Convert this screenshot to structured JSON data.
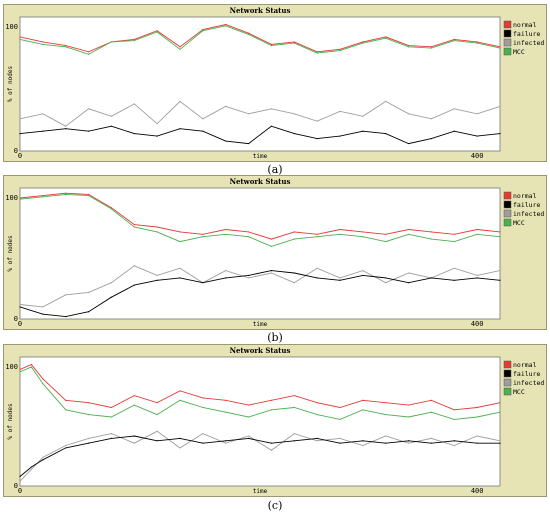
{
  "chart_data": [
    {
      "type": "line",
      "caption": "(a)",
      "title": "Network Status",
      "xlabel": "time",
      "ylabel": "% of nodes",
      "xlim": [
        0,
        420
      ],
      "ylim": [
        0,
        100
      ],
      "xticks": [
        "0",
        "400"
      ],
      "yticks": [
        "0",
        "100"
      ],
      "legend": "right",
      "series": [
        {
          "name": "normal",
          "color": "#e53935",
          "x": [
            0,
            20,
            40,
            60,
            80,
            100,
            120,
            140,
            160,
            180,
            200,
            220,
            240,
            260,
            280,
            300,
            320,
            340,
            360,
            380,
            400,
            420
          ],
          "values": [
            92,
            88,
            85,
            80,
            88,
            90,
            97,
            84,
            98,
            102,
            95,
            86,
            88,
            80,
            82,
            88,
            92,
            85,
            84,
            90,
            88,
            84
          ]
        },
        {
          "name": "failure",
          "color": "#000000",
          "x": [
            0,
            20,
            40,
            60,
            80,
            100,
            120,
            140,
            160,
            180,
            200,
            220,
            240,
            260,
            280,
            300,
            320,
            340,
            360,
            380,
            400,
            420
          ],
          "values": [
            14,
            16,
            18,
            16,
            20,
            14,
            12,
            18,
            16,
            8,
            6,
            20,
            14,
            10,
            12,
            16,
            14,
            6,
            10,
            16,
            12,
            14
          ]
        },
        {
          "name": "infected",
          "color": "#9e9e9e",
          "x": [
            0,
            20,
            40,
            60,
            80,
            100,
            120,
            140,
            160,
            180,
            200,
            220,
            240,
            260,
            280,
            300,
            320,
            340,
            360,
            380,
            400,
            420
          ],
          "values": [
            26,
            30,
            20,
            34,
            28,
            38,
            22,
            40,
            26,
            36,
            30,
            34,
            30,
            24,
            32,
            28,
            40,
            30,
            26,
            34,
            30,
            36
          ]
        },
        {
          "name": "MCC",
          "color": "#4caf50",
          "x": [
            0,
            20,
            40,
            60,
            80,
            100,
            120,
            140,
            160,
            180,
            200,
            220,
            240,
            260,
            280,
            300,
            320,
            340,
            360,
            380,
            400,
            420
          ],
          "values": [
            90,
            86,
            84,
            78,
            88,
            89,
            96,
            82,
            97,
            101,
            94,
            85,
            87,
            79,
            81,
            87,
            91,
            84,
            83,
            89,
            87,
            83
          ]
        }
      ]
    },
    {
      "type": "line",
      "caption": "(b)",
      "title": "Network Status",
      "xlabel": "time",
      "ylabel": "% of nodes",
      "xlim": [
        0,
        420
      ],
      "ylim": [
        0,
        100
      ],
      "xticks": [
        "0",
        "400"
      ],
      "yticks": [
        "0",
        "100"
      ],
      "legend": "right",
      "series": [
        {
          "name": "normal",
          "color": "#e53935",
          "x": [
            0,
            20,
            40,
            60,
            80,
            100,
            120,
            140,
            160,
            180,
            200,
            220,
            240,
            260,
            280,
            300,
            320,
            340,
            360,
            380,
            400,
            420
          ],
          "values": [
            100,
            102,
            104,
            103,
            92,
            78,
            76,
            72,
            70,
            74,
            72,
            66,
            72,
            70,
            74,
            72,
            70,
            74,
            72,
            70,
            74,
            72
          ]
        },
        {
          "name": "failure",
          "color": "#000000",
          "x": [
            0,
            20,
            40,
            60,
            80,
            100,
            120,
            140,
            160,
            180,
            200,
            220,
            240,
            260,
            280,
            300,
            320,
            340,
            360,
            380,
            400,
            420
          ],
          "values": [
            10,
            4,
            2,
            6,
            18,
            28,
            32,
            34,
            30,
            34,
            36,
            40,
            38,
            34,
            32,
            36,
            34,
            30,
            34,
            32,
            34,
            32
          ]
        },
        {
          "name": "infected",
          "color": "#9e9e9e",
          "x": [
            0,
            20,
            40,
            60,
            80,
            100,
            120,
            140,
            160,
            180,
            200,
            220,
            240,
            260,
            280,
            300,
            320,
            340,
            360,
            380,
            400,
            420
          ],
          "values": [
            12,
            10,
            20,
            22,
            30,
            44,
            36,
            42,
            30,
            40,
            34,
            38,
            30,
            42,
            34,
            40,
            30,
            38,
            34,
            42,
            36,
            40
          ]
        },
        {
          "name": "MCC",
          "color": "#4caf50",
          "x": [
            0,
            20,
            40,
            60,
            80,
            100,
            120,
            140,
            160,
            180,
            200,
            220,
            240,
            260,
            280,
            300,
            320,
            340,
            360,
            380,
            400,
            420
          ],
          "values": [
            99,
            101,
            103,
            102,
            91,
            76,
            72,
            64,
            68,
            70,
            68,
            60,
            66,
            68,
            70,
            68,
            64,
            70,
            66,
            64,
            70,
            68
          ]
        }
      ]
    },
    {
      "type": "line",
      "caption": "(c)",
      "title": "Network Status",
      "xlabel": "time",
      "ylabel": "% of nodes",
      "xlim": [
        0,
        420
      ],
      "ylim": [
        0,
        100
      ],
      "xticks": [
        "0",
        "400"
      ],
      "yticks": [
        "0",
        "100"
      ],
      "legend": "right",
      "series": [
        {
          "name": "normal",
          "color": "#e53935",
          "x": [
            0,
            10,
            20,
            40,
            60,
            80,
            100,
            120,
            140,
            160,
            180,
            200,
            220,
            240,
            260,
            280,
            300,
            320,
            340,
            360,
            380,
            400,
            420
          ],
          "values": [
            98,
            102,
            90,
            72,
            70,
            66,
            76,
            70,
            80,
            74,
            72,
            68,
            72,
            76,
            70,
            66,
            72,
            70,
            68,
            72,
            64,
            66,
            70
          ]
        },
        {
          "name": "failure",
          "color": "#000000",
          "x": [
            0,
            10,
            20,
            40,
            60,
            80,
            100,
            120,
            140,
            160,
            180,
            200,
            220,
            240,
            260,
            280,
            300,
            320,
            340,
            360,
            380,
            400,
            420
          ],
          "values": [
            8,
            16,
            22,
            32,
            36,
            40,
            42,
            38,
            40,
            36,
            38,
            40,
            36,
            38,
            40,
            36,
            38,
            36,
            38,
            36,
            38,
            36,
            36
          ]
        },
        {
          "name": "infected",
          "color": "#9e9e9e",
          "x": [
            0,
            10,
            20,
            40,
            60,
            80,
            100,
            120,
            140,
            160,
            180,
            200,
            220,
            240,
            260,
            280,
            300,
            320,
            340,
            360,
            380,
            400,
            420
          ],
          "values": [
            4,
            14,
            24,
            34,
            40,
            44,
            36,
            46,
            32,
            44,
            36,
            42,
            30,
            44,
            38,
            40,
            34,
            42,
            36,
            40,
            34,
            42,
            38
          ]
        },
        {
          "name": "MCC",
          "color": "#4caf50",
          "x": [
            0,
            10,
            20,
            40,
            60,
            80,
            100,
            120,
            140,
            160,
            180,
            200,
            220,
            240,
            260,
            280,
            300,
            320,
            340,
            360,
            380,
            400,
            420
          ],
          "values": [
            96,
            100,
            86,
            64,
            60,
            58,
            68,
            60,
            72,
            66,
            62,
            58,
            64,
            66,
            60,
            56,
            64,
            60,
            58,
            62,
            56,
            58,
            62
          ]
        }
      ]
    }
  ]
}
